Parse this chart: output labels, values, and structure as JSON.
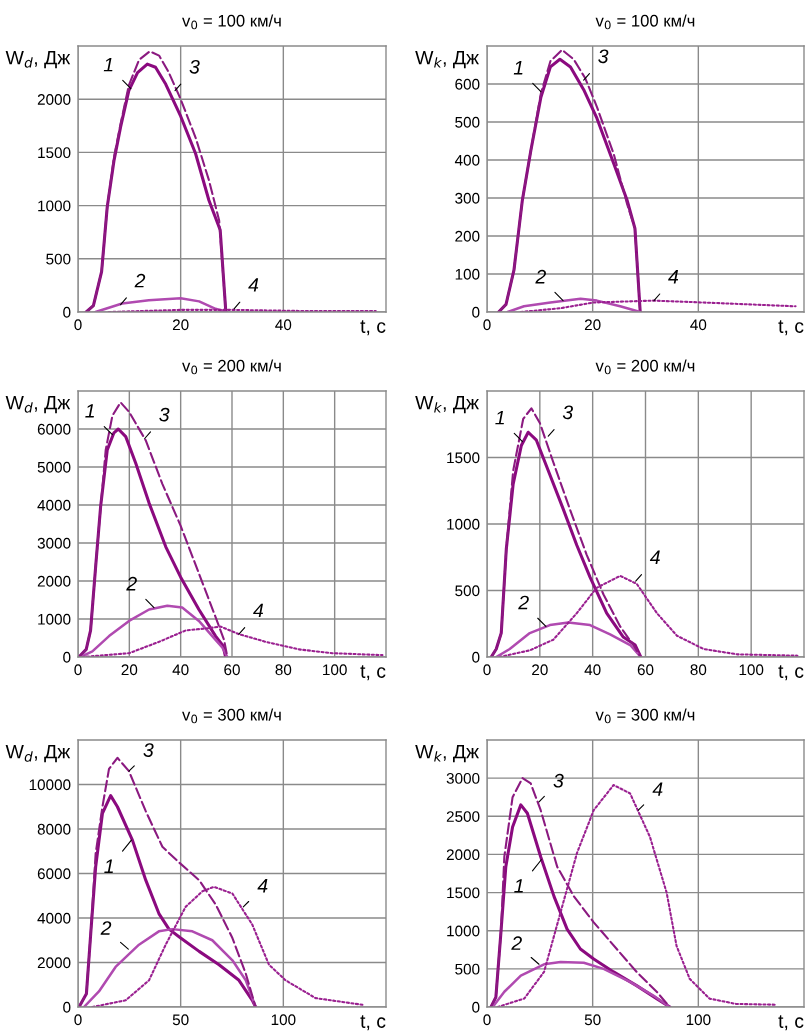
{
  "chart_data": [
    {
      "type": "line",
      "title": "v$_{0}$ = 100 км/ч",
      "xlabel": "t, с",
      "ylabel": "W$_{d}$, Дж",
      "xlim": [
        0,
        60
      ],
      "xticks": [
        0,
        20,
        40
      ],
      "ylim": [
        0,
        2500
      ],
      "yticks": [
        0,
        500,
        1000,
        1500,
        2000
      ],
      "grid": true,
      "series": [
        {
          "color": "#8b0a7f",
          "line_style": "solid",
          "x": [
            1.6,
            3,
            4.6,
            5.7,
            7,
            8.3,
            9.9,
            11.6,
            13.5,
            15.1,
            17.1,
            20,
            22.9,
            25.5,
            27.7,
            28.8
          ],
          "values": [
            0,
            60,
            380,
            990,
            1420,
            1740,
            2080,
            2250,
            2330,
            2300,
            2140,
            1840,
            1490,
            1050,
            770,
            0
          ]
        },
        {
          "color": "#b04ab0",
          "line_style": "solid",
          "x": [
            3.4,
            5.4,
            8.6,
            13.8,
            20,
            23.6,
            26.8,
            28.8
          ],
          "values": [
            0,
            30,
            80,
            110,
            130,
            100,
            30,
            0
          ]
        },
        {
          "color": "#8b1a80",
          "line_style": "dashed",
          "x": [
            1.6,
            3,
            4.6,
            5.7,
            7,
            8.3,
            9.9,
            11.9,
            14,
            15.8,
            17.7,
            20,
            22.9,
            25.5,
            27.5,
            28.8
          ],
          "values": [
            0,
            60,
            380,
            990,
            1450,
            1770,
            2130,
            2370,
            2450,
            2410,
            2250,
            2000,
            1640,
            1240,
            860,
            0
          ]
        },
        {
          "color": "#9a2090",
          "line_style": "dotted",
          "x": [
            6,
            20,
            30,
            43,
            58
          ],
          "values": [
            0,
            20,
            20,
            10,
            10
          ]
        }
      ],
      "annotations": [
        {
          "text": "1",
          "x": 10.3,
          "y": 2100
        },
        {
          "text": "2",
          "x": 8.3,
          "y": 70
        },
        {
          "text": "3",
          "x": 18.9,
          "y": 2080
        },
        {
          "text": "4",
          "x": 30.4,
          "y": 30
        }
      ]
    },
    {
      "type": "line",
      "title": "v$_{0}$ = 100 км/ч",
      "xlabel": "t, с",
      "ylabel": "W$_{k}$, Дж",
      "xlim": [
        0,
        60
      ],
      "xticks": [
        0,
        20,
        40
      ],
      "ylim": [
        0,
        700
      ],
      "yticks": [
        0,
        100,
        200,
        300,
        400,
        500,
        600
      ],
      "grid": true,
      "series": [
        {
          "color": "#8b0a7f",
          "line_style": "solid",
          "x": [
            2.2,
            3.6,
            5.1,
            6.7,
            8.3,
            10.2,
            12,
            13.8,
            15.8,
            18.3,
            20.8,
            24,
            26.5,
            28,
            29
          ],
          "values": [
            0,
            20,
            110,
            295,
            425,
            565,
            645,
            665,
            645,
            585,
            510,
            390,
            295,
            220,
            0
          ]
        },
        {
          "color": "#b04ab0",
          "line_style": "solid",
          "x": [
            3.9,
            7,
            12,
            17.7,
            20.8,
            25.2,
            29
          ],
          "values": [
            0,
            15,
            25,
            35,
            30,
            15,
            0
          ]
        },
        {
          "color": "#8b1a80",
          "line_style": "dashed",
          "x": [
            2.2,
            3.6,
            5.1,
            6.7,
            8.3,
            10.2,
            12,
            14.2,
            16.4,
            18.6,
            20.8,
            24,
            26.5,
            28,
            29
          ],
          "values": [
            0,
            20,
            110,
            295,
            425,
            575,
            660,
            690,
            665,
            615,
            540,
            415,
            285,
            220,
            0
          ]
        },
        {
          "color": "#9a2090",
          "line_style": "dotted",
          "x": [
            6.4,
            13.9,
            20.2,
            31.5,
            40.9,
            58.4
          ],
          "values": [
            0,
            10,
            25,
            30,
            25,
            15
          ]
        }
      ],
      "annotations": [
        {
          "text": "1",
          "x": 10.2,
          "y": 580
        },
        {
          "text": "2",
          "x": 14.4,
          "y": 30
        },
        {
          "text": "3",
          "x": 18.3,
          "y": 610
        },
        {
          "text": "4",
          "x": 31.6,
          "y": 30
        }
      ]
    },
    {
      "type": "line",
      "title": "v$_{0}$ = 200 км/ч",
      "xlabel": "t, с",
      "ylabel": "W$_{d}$, Дж",
      "xlim": [
        0,
        120
      ],
      "xticks": [
        0,
        20,
        40,
        60,
        80,
        100
      ],
      "ylim": [
        0,
        7000
      ],
      "yticks": [
        0,
        1000,
        2000,
        3000,
        4000,
        5000,
        6000
      ],
      "grid": true,
      "series": [
        {
          "color": "#8b0a7f",
          "line_style": "solid",
          "x": [
            0.4,
            3.2,
            4.9,
            6.9,
            8.8,
            11.4,
            14,
            15.7,
            18.6,
            22.5,
            27.7,
            34.2,
            40,
            47.1,
            53.6,
            56.5,
            57.5
          ],
          "values": [
            0,
            200,
            700,
            2400,
            3950,
            5450,
            5900,
            6000,
            5800,
            5100,
            4050,
            2900,
            2100,
            1250,
            550,
            300,
            0
          ]
        },
        {
          "color": "#b04ab0",
          "line_style": "solid",
          "x": [
            1,
            5.6,
            12.1,
            19.9,
            27.7,
            34.8,
            40.6,
            47.1,
            52.3,
            56.2,
            58.2
          ],
          "values": [
            0,
            150,
            550,
            950,
            1250,
            1350,
            1300,
            950,
            550,
            250,
            0
          ]
        },
        {
          "color": "#8b1a80",
          "line_style": "dashed",
          "x": [
            0.4,
            3.2,
            4.9,
            6.9,
            8.2,
            10.8,
            13.4,
            16.6,
            19.9,
            26.4,
            32.9,
            40,
            47.1,
            53.6,
            56.9,
            58.2
          ],
          "values": [
            0,
            200,
            700,
            2400,
            3450,
            5450,
            6350,
            6700,
            6450,
            5700,
            4550,
            3450,
            2200,
            1050,
            450,
            0
          ]
        },
        {
          "color": "#9a2090",
          "line_style": "dotted",
          "x": [
            1.7,
            19.9,
            31.6,
            42,
            49.7,
            55.6,
            62.7,
            73.1,
            86.1,
            99.1,
            118.6
          ],
          "values": [
            0,
            100,
            400,
            700,
            750,
            800,
            600,
            400,
            200,
            100,
            50
          ]
        }
      ],
      "annotations": [
        {
          "text": "1",
          "x": 13.4,
          "y": 5850
        },
        {
          "text": "2",
          "x": 29.6,
          "y": 1300
        },
        {
          "text": "3",
          "x": 26,
          "y": 5750
        },
        {
          "text": "4",
          "x": 62.7,
          "y": 600
        }
      ]
    },
    {
      "type": "line",
      "title": "v$_{0}$ = 200 км/ч",
      "xlabel": "t, с",
      "ylabel": "W$_{k}$, Дж",
      "xlim": [
        0,
        120
      ],
      "xticks": [
        0,
        20,
        40,
        60,
        80,
        100
      ],
      "ylim": [
        0,
        2000
      ],
      "yticks": [
        0,
        500,
        1000,
        1500
      ],
      "grid": true,
      "series": [
        {
          "color": "#8b0a7f",
          "line_style": "solid",
          "x": [
            1.6,
            3.5,
            5.4,
            7.3,
            9.9,
            13,
            15.6,
            18.7,
            23.8,
            28.9,
            34,
            39,
            45.3,
            51.6,
            56.1,
            58.2
          ],
          "values": [
            0,
            60,
            180,
            810,
            1300,
            1590,
            1690,
            1630,
            1370,
            1110,
            840,
            600,
            330,
            150,
            90,
            0
          ]
        },
        {
          "color": "#b04ab0",
          "line_style": "solid",
          "x": [
            3.5,
            8.6,
            16.2,
            23.8,
            30.8,
            39,
            46.6,
            54.2,
            58.2
          ],
          "values": [
            0,
            60,
            180,
            240,
            260,
            240,
            170,
            90,
            0
          ]
        },
        {
          "color": "#8b1a80",
          "line_style": "dashed",
          "x": [
            1.6,
            3.5,
            5.4,
            7.3,
            9.9,
            13.7,
            16.8,
            20,
            25,
            31.4,
            37.7,
            44.1,
            50.4,
            55.4,
            58.2
          ],
          "values": [
            0,
            60,
            180,
            810,
            1400,
            1790,
            1870,
            1760,
            1470,
            1110,
            770,
            470,
            230,
            90,
            0
          ]
        },
        {
          "color": "#9a2090",
          "line_style": "dotted",
          "x": [
            4.8,
            16.2,
            25.1,
            34,
            41.5,
            50.4,
            56.7,
            64.3,
            71.9,
            82,
            94.7,
            117.5
          ],
          "values": [
            0,
            50,
            130,
            330,
            520,
            610,
            550,
            330,
            160,
            60,
            20,
            10
          ]
        }
      ],
      "annotations": [
        {
          "text": "1",
          "x": 13.4,
          "y": 1620
        },
        {
          "text": "2",
          "x": 22.3,
          "y": 230
        },
        {
          "text": "3",
          "x": 23.2,
          "y": 1660
        },
        {
          "text": "4",
          "x": 56.3,
          "y": 570
        }
      ]
    },
    {
      "type": "line",
      "title": "v$_{0}$ = 300 км/ч",
      "xlabel": "t, с",
      "ylabel": "W$_{d}$, Дж",
      "xlim": [
        0,
        150
      ],
      "xticks": [
        0,
        50,
        100
      ],
      "ylim": [
        0,
        12000
      ],
      "yticks": [
        0,
        2000,
        4000,
        6000,
        8000,
        10000
      ],
      "grid": true,
      "series": [
        {
          "color": "#8b0a7f",
          "line_style": "solid",
          "x": [
            0.5,
            4.1,
            6.2,
            8.6,
            11.9,
            15.9,
            19.2,
            26.5,
            33,
            39.4,
            44.3,
            50,
            59,
            68.7,
            78.4,
            84.9,
            86.5
          ],
          "values": [
            0,
            600,
            3300,
            6300,
            8700,
            9500,
            9000,
            7500,
            5700,
            4200,
            3500,
            3100,
            2500,
            1900,
            1200,
            300,
            0
          ]
        },
        {
          "color": "#b04ab0",
          "line_style": "solid",
          "x": [
            2.9,
            10.2,
            18.3,
            29.7,
            39.4,
            45.9,
            55.7,
            65.4,
            75.2,
            81.7,
            86.5
          ],
          "values": [
            0,
            700,
            1800,
            2800,
            3400,
            3500,
            3400,
            3000,
            2100,
            1200,
            0
          ]
        },
        {
          "color": "#8b1a80",
          "line_style": "dashed",
          "x": [
            0.5,
            4.1,
            6.2,
            8.6,
            11.9,
            15.1,
            19.2,
            24.8,
            33,
            41.1,
            49.2,
            59,
            67.1,
            75.2,
            81.7,
            86.5
          ],
          "values": [
            0,
            600,
            3300,
            6900,
            9000,
            10700,
            11200,
            10600,
            8800,
            7200,
            6500,
            5700,
            4600,
            3100,
            1500,
            0
          ]
        },
        {
          "color": "#9a2090",
          "line_style": "dotted",
          "x": [
            7,
            23.2,
            34.6,
            42.7,
            52.4,
            60.6,
            66.2,
            75.2,
            84.9,
            93,
            101.1,
            115.7,
            138.5
          ],
          "values": [
            0,
            300,
            1200,
            2800,
            4500,
            5200,
            5400,
            5100,
            3700,
            1900,
            1200,
            400,
            100
          ]
        }
      ],
      "annotations": [
        {
          "text": "1",
          "x": 26,
          "y": 7500
        },
        {
          "text": "2",
          "x": 24.5,
          "y": 2600
        },
        {
          "text": "3",
          "x": 24.8,
          "y": 10600
        },
        {
          "text": "4",
          "x": 80.5,
          "y": 4500
        }
      ]
    },
    {
      "type": "line",
      "title": "v$_{0}$ = 300 км/ч",
      "xlabel": "t, с",
      "ylabel": "W$_{k}$, Дж",
      "xlim": [
        0,
        150
      ],
      "xticks": [
        0,
        50,
        100
      ],
      "ylim": [
        0,
        3500
      ],
      "yticks": [
        0,
        500,
        1000,
        1500,
        2000,
        2500,
        3000
      ],
      "grid": true,
      "series": [
        {
          "color": "#8b0a7f",
          "line_style": "solid",
          "x": [
            1.9,
            4.2,
            6.6,
            8.9,
            12.1,
            16,
            19.1,
            25.4,
            31.7,
            37.9,
            44.2,
            50.5,
            59.9,
            70.8,
            80.3,
            86.5
          ],
          "values": [
            0,
            130,
            980,
            1840,
            2360,
            2650,
            2540,
            1970,
            1450,
            1020,
            760,
            630,
            460,
            280,
            110,
            0
          ]
        },
        {
          "color": "#b04ab0",
          "line_style": "solid",
          "x": [
            2.7,
            8.2,
            16,
            27,
            34.8,
            45.8,
            55.2,
            67.7,
            78.7,
            86.5
          ],
          "values": [
            0,
            200,
            410,
            560,
            590,
            580,
            500,
            330,
            150,
            0
          ]
        },
        {
          "color": "#8b1a80",
          "line_style": "dashed",
          "x": [
            1.9,
            4.2,
            6.6,
            8.2,
            12.1,
            16.8,
            20.7,
            25.4,
            33.2,
            41.1,
            50.5,
            61.4,
            70.8,
            80.3,
            86.5
          ],
          "values": [
            0,
            130,
            980,
            1970,
            2750,
            3000,
            2930,
            2580,
            1840,
            1450,
            1110,
            760,
            460,
            200,
            0
          ]
        },
        {
          "color": "#9a2090",
          "line_style": "dotted",
          "x": [
            5,
            17.6,
            27,
            34.8,
            42.6,
            50.5,
            59.9,
            67.7,
            77.1,
            85,
            89.7,
            95.9,
            105.3,
            117.9,
            136.7
          ],
          "values": [
            0,
            110,
            460,
            1240,
            2020,
            2580,
            2910,
            2800,
            2230,
            1500,
            800,
            370,
            110,
            40,
            30
          ]
        }
      ],
      "annotations": [
        {
          "text": "1",
          "x": 25.7,
          "y": 1930
        },
        {
          "text": "2",
          "x": 24.6,
          "y": 560
        },
        {
          "text": "3",
          "x": 24.6,
          "y": 2690
        },
        {
          "text": "4",
          "x": 71.6,
          "y": 2580
        }
      ]
    }
  ]
}
